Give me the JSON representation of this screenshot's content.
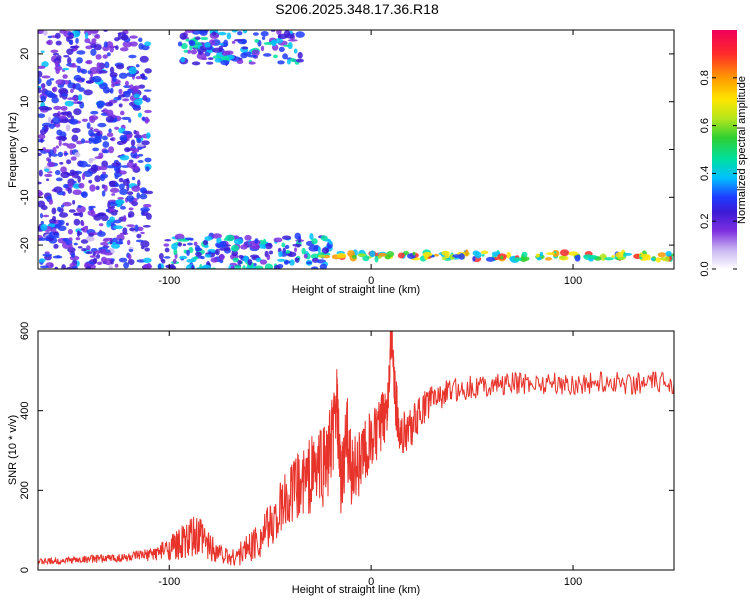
{
  "title": "S206.2025.348.17.36.R18",
  "colors": {
    "series": "#e8332b",
    "axis": "#000000",
    "background": "#ffffff"
  },
  "chart_data": [
    {
      "id": "spectrogram",
      "type": "heatmap",
      "xlabel": "Height of straight line (km)",
      "ylabel": "Frequency (Hz)",
      "xlim": [
        -165,
        150
      ],
      "ylim": [
        -25,
        25
      ],
      "x_ticks": [
        -100,
        0,
        100
      ],
      "x_tick_labels": [
        "-100",
        "0",
        "100"
      ],
      "y_ticks": [
        -20,
        -10,
        0,
        10,
        20
      ],
      "y_tick_labels": [
        "-20",
        "-10",
        "0",
        "10",
        "20"
      ],
      "colorbar": {
        "label": "Normalized spectral amplitude",
        "range": [
          0,
          1
        ],
        "ticks": [
          0,
          0.2,
          0.4,
          0.6,
          0.8
        ],
        "tick_labels": [
          "0.0",
          "0.2",
          "0.4",
          "0.6",
          "0.8"
        ],
        "colormap": [
          "#ffffff",
          "#c9b6f2",
          "#7d2fe0",
          "#3b1bd6",
          "#1f3bff",
          "#00bfff",
          "#00e0a0",
          "#30d030",
          "#b5e61d",
          "#ffe500",
          "#ff9a00",
          "#ff2a2a",
          "#f0005a"
        ]
      },
      "features": [
        {
          "name": "scattered low-amplitude energy",
          "x_range": [
            -165,
            -110
          ],
          "freq_range": [
            -25,
            25
          ],
          "amplitude": 0.3
        },
        {
          "name": "rising band",
          "x_range": [
            -105,
            -20
          ],
          "freq_range": [
            -25,
            -18
          ],
          "amplitude": 0.4
        },
        {
          "name": "upper band",
          "x_range": [
            -95,
            -35
          ],
          "freq_range": [
            18,
            25
          ],
          "amplitude": 0.4
        },
        {
          "name": "narrow band",
          "x_range": [
            -25,
            150
          ],
          "freq_range": [
            -23.5,
            -21
          ],
          "amplitude": 0.8
        }
      ]
    },
    {
      "id": "snr",
      "type": "line",
      "xlabel": "Height of straight line (km)",
      "ylabel": "SNR (10 * v/v)",
      "xlim": [
        -165,
        150
      ],
      "ylim": [
        0,
        600
      ],
      "x_ticks": [
        -100,
        0,
        100
      ],
      "x_tick_labels": [
        "-100",
        "0",
        "100"
      ],
      "y_ticks": [
        0,
        200,
        400,
        600
      ],
      "y_tick_labels": [
        "0",
        "200",
        "400",
        "600"
      ],
      "series": [
        {
          "color": "#e8332b",
          "x": [
            -165,
            -160,
            -155,
            -150,
            -145,
            -140,
            -135,
            -130,
            -125,
            -120,
            -115,
            -110,
            -105,
            -100,
            -95,
            -90,
            -85,
            -80,
            -75,
            -70,
            -65,
            -60,
            -55,
            -50,
            -45,
            -40,
            -35,
            -30,
            -25,
            -20,
            -17,
            -15,
            -12,
            -10,
            -5,
            0,
            5,
            8,
            10,
            12,
            15,
            20,
            25,
            30,
            35,
            40,
            50,
            60,
            70,
            80,
            90,
            100,
            110,
            120,
            130,
            140,
            150
          ],
          "y": [
            20,
            22,
            22,
            25,
            25,
            28,
            28,
            30,
            30,
            32,
            35,
            38,
            45,
            55,
            65,
            75,
            80,
            60,
            45,
            30,
            40,
            60,
            80,
            110,
            150,
            190,
            215,
            240,
            260,
            300,
            420,
            200,
            340,
            250,
            280,
            320,
            360,
            420,
            590,
            420,
            340,
            360,
            400,
            430,
            440,
            450,
            460,
            465,
            468,
            470,
            470,
            465,
            470,
            472,
            468,
            470,
            470
          ],
          "noise": [
            8,
            8,
            8,
            8,
            8,
            10,
            10,
            10,
            12,
            12,
            14,
            16,
            20,
            30,
            40,
            55,
            60,
            40,
            25,
            20,
            30,
            40,
            50,
            60,
            70,
            80,
            90,
            100,
            110,
            120,
            90,
            100,
            110,
            100,
            90,
            80,
            80,
            70,
            50,
            70,
            60,
            50,
            45,
            40,
            35,
            30,
            30,
            30,
            28,
            28,
            28,
            28,
            28,
            30,
            28,
            28,
            28
          ]
        }
      ]
    }
  ]
}
